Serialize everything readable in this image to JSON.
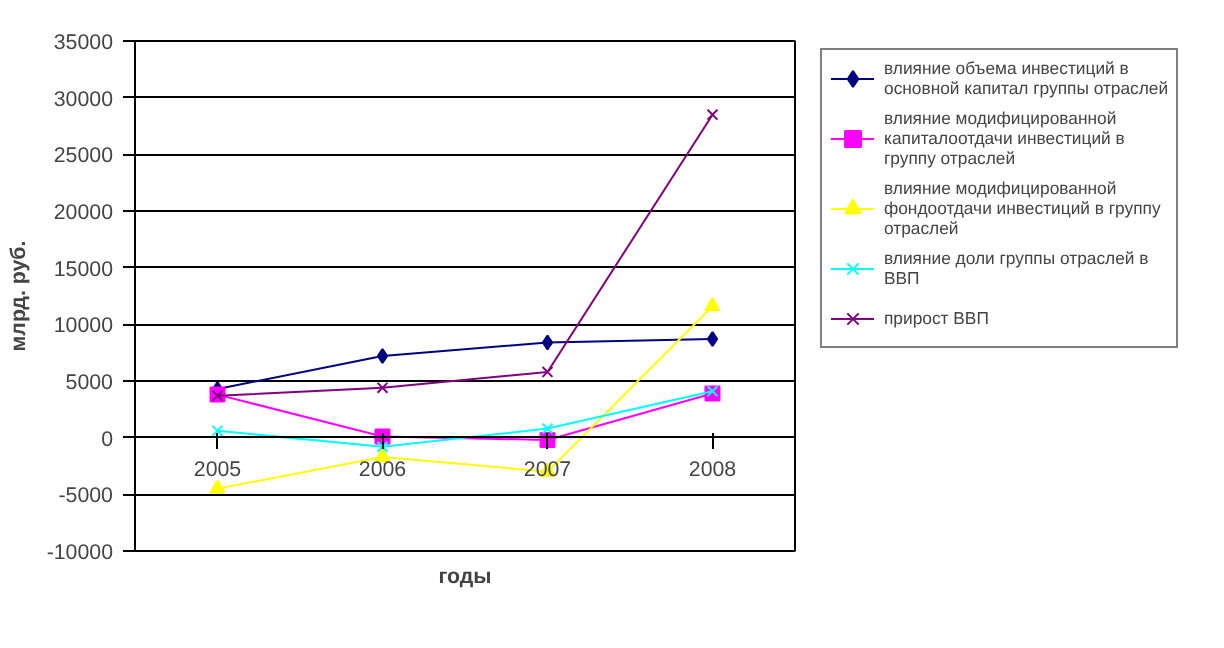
{
  "chart_data": {
    "type": "line",
    "xlabel": "годы",
    "ylabel": "млрд. руб.",
    "categories": [
      "2005",
      "2006",
      "2007",
      "2008"
    ],
    "ylim": [
      -10000,
      35000
    ],
    "yticks": [
      -10000,
      -5000,
      0,
      5000,
      10000,
      15000,
      20000,
      25000,
      30000,
      35000
    ],
    "grid": "y",
    "legend": "right",
    "line_style": "solid",
    "series": [
      {
        "name": "влияние объема инвестиций в основной капитал группы отраслей",
        "color": "#000080",
        "marker": "diamond",
        "values": [
          4300,
          7200,
          8400,
          8700
        ]
      },
      {
        "name": "влияние модифицированной капиталоотдачи инвестиций в группу отраслей",
        "color": "#ff00ff",
        "marker": "square",
        "values": [
          3800,
          100,
          -200,
          3900
        ]
      },
      {
        "name": "влияние модифицированной фондоотдачи инвестиций в группу отраслей",
        "color": "#ffff00",
        "marker": "triangle",
        "values": [
          -4500,
          -1700,
          -3000,
          11600
        ]
      },
      {
        "name": "влияние доли группы отраслей в ВВП",
        "color": "#00ffff",
        "marker": "cross",
        "values": [
          600,
          -800,
          800,
          4100
        ]
      },
      {
        "name": "прирост ВВП",
        "color": "#800080",
        "marker": "cross",
        "values": [
          3700,
          4400,
          5800,
          28500
        ]
      }
    ]
  }
}
